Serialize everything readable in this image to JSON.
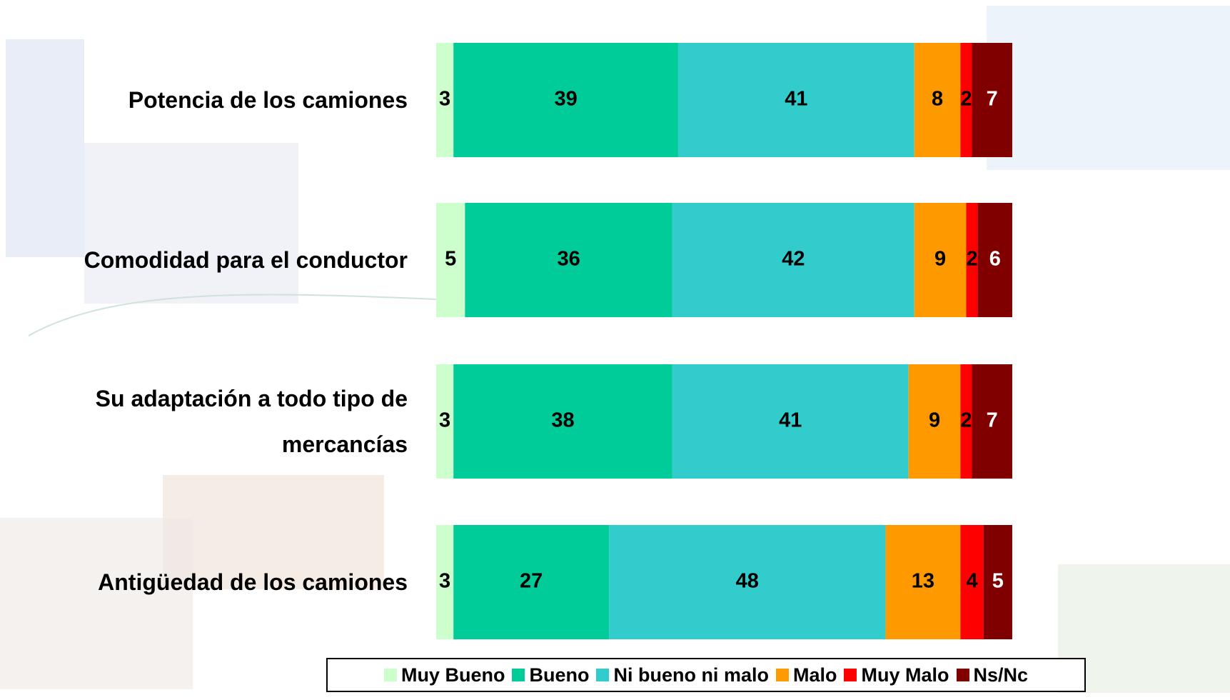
{
  "chart_data": {
    "type": "stacked-bar-horizontal",
    "categories": [
      "Potencia de los camiones",
      "Comodidad para el conductor",
      "Su adaptación a todo tipo de mercancías",
      "Antigüedad de los camiones"
    ],
    "xlim": [
      0,
      100
    ],
    "series": [
      {
        "name": "Muy Bueno",
        "color": "#ccffcc",
        "label_color": "#000000",
        "values": [
          3,
          5,
          3,
          3
        ]
      },
      {
        "name": "Bueno",
        "color": "#00cc99",
        "label_color": "#000000",
        "values": [
          39,
          36,
          38,
          27
        ]
      },
      {
        "name": "Ni bueno ni malo",
        "color": "#33cccc",
        "label_color": "#000000",
        "values": [
          41,
          42,
          41,
          48
        ]
      },
      {
        "name": "Malo",
        "color": "#ff9900",
        "label_color": "#000000",
        "values": [
          8,
          9,
          9,
          13
        ]
      },
      {
        "name": "Muy Malo",
        "color": "#ff0000",
        "label_color": "#000000",
        "values": [
          2,
          2,
          2,
          4
        ]
      },
      {
        "name": "Ns/Nc",
        "color": "#800000",
        "label_color": "#ffffff",
        "values": [
          7,
          6,
          7,
          5
        ]
      }
    ],
    "legend": "bottom"
  }
}
